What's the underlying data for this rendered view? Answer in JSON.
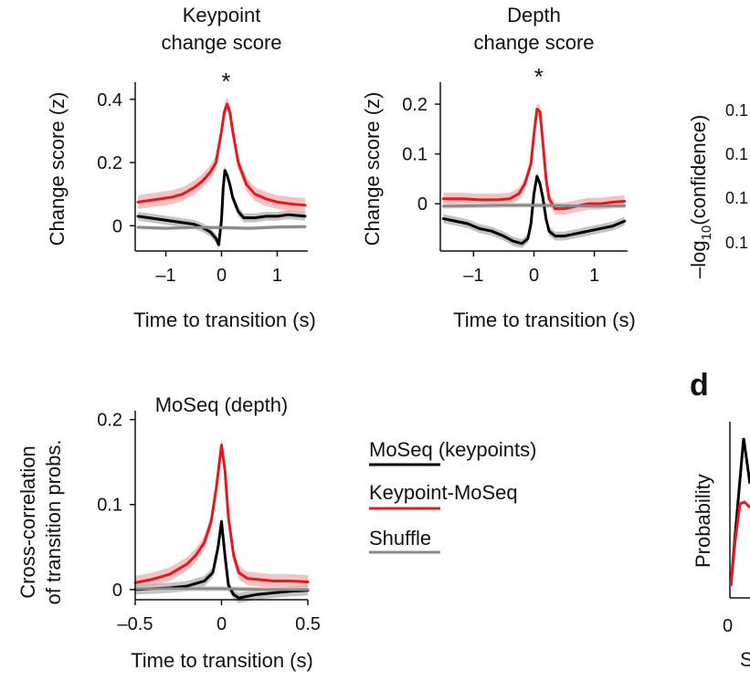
{
  "colors": {
    "moseq_keypoints": "#000000",
    "keypoint_moseq": "#e31a1c",
    "shuffle": "#8a8a8a",
    "band_red": "#f4b6b7",
    "band_black": "#b9b9b9",
    "band_grey": "#d2d2d2"
  },
  "panel_d_label": "d",
  "legend": [
    {
      "label": "MoSeq (keypoints)",
      "color_key": "moseq_keypoints"
    },
    {
      "label": "Keypoint-MoSeq",
      "color_key": "keypoint_moseq"
    },
    {
      "label": "Shuffle",
      "color_key": "shuffle"
    }
  ],
  "partial": {
    "right_ylabel_top": "–log",
    "right_ylabel_sub": "10",
    "right_ylabel_rest": "(confidence)",
    "right_ticks": [
      "0.1",
      "0.1",
      "0.1",
      "0.1"
    ],
    "d_ylabel": "Probability",
    "d_xtick": "0",
    "d_xlabel_fragment": "S"
  },
  "chart_data": [
    {
      "type": "line",
      "title_lines": [
        "Keypoint",
        "change score"
      ],
      "xlabel": "Time to transition (s)",
      "ylabel": "Change score (z)",
      "xlim": [
        -1.55,
        1.55
      ],
      "ylim": [
        -0.08,
        0.44
      ],
      "xticks": [
        -1,
        0,
        1
      ],
      "xtick_labels": [
        "–1",
        "0",
        "1"
      ],
      "yticks": [
        0,
        0.2,
        0.4
      ],
      "ytick_labels": [
        "0",
        "0.2",
        "0.4"
      ],
      "annotation": "*",
      "annotation_x": 0.08,
      "series": [
        {
          "name": "Keypoint-MoSeq",
          "color_key": "keypoint_moseq",
          "band_key": "band_red",
          "band": 0.022,
          "x": [
            -1.5,
            -1.3,
            -1.1,
            -0.9,
            -0.7,
            -0.5,
            -0.35,
            -0.2,
            -0.1,
            0,
            0.05,
            0.1,
            0.15,
            0.2,
            0.3,
            0.45,
            0.6,
            0.8,
            1.0,
            1.2,
            1.5
          ],
          "y": [
            0.075,
            0.08,
            0.085,
            0.09,
            0.1,
            0.12,
            0.14,
            0.17,
            0.2,
            0.3,
            0.36,
            0.385,
            0.36,
            0.3,
            0.2,
            0.13,
            0.1,
            0.085,
            0.075,
            0.07,
            0.065
          ]
        },
        {
          "name": "MoSeq (keypoints)",
          "color_key": "moseq_keypoints",
          "band_key": "band_black",
          "band": 0.014,
          "x": [
            -1.5,
            -1.3,
            -1.1,
            -0.9,
            -0.7,
            -0.5,
            -0.35,
            -0.2,
            -0.1,
            -0.05,
            0,
            0.03,
            0.06,
            0.1,
            0.15,
            0.2,
            0.3,
            0.4,
            0.6,
            0.8,
            1.0,
            1.2,
            1.5
          ],
          "y": [
            0.03,
            0.025,
            0.02,
            0.015,
            0.01,
            0.005,
            -0.005,
            -0.02,
            -0.04,
            -0.06,
            0.02,
            0.12,
            0.175,
            0.16,
            0.13,
            0.09,
            0.045,
            0.025,
            0.025,
            0.03,
            0.03,
            0.035,
            0.03
          ]
        },
        {
          "name": "Shuffle",
          "color_key": "shuffle",
          "band_key": "band_grey",
          "band": 0.006,
          "x": [
            -1.5,
            -1.0,
            -0.5,
            0,
            0.5,
            1.0,
            1.5
          ],
          "y": [
            -0.005,
            -0.008,
            -0.005,
            -0.006,
            -0.008,
            -0.004,
            -0.003
          ]
        }
      ]
    },
    {
      "type": "line",
      "title_lines": [
        "Depth",
        "change score"
      ],
      "xlabel": "Time to transition (s)",
      "ylabel": "Change score (z)",
      "xlim": [
        -1.55,
        1.55
      ],
      "ylim": [
        -0.095,
        0.235
      ],
      "xticks": [
        -1,
        0,
        1
      ],
      "xtick_labels": [
        "–1",
        "0",
        "1"
      ],
      "yticks": [
        0,
        0.1,
        0.2
      ],
      "ytick_labels": [
        "0",
        "0.1",
        "0.2"
      ],
      "annotation": "*",
      "annotation_x": 0.08,
      "series": [
        {
          "name": "Keypoint-MoSeq",
          "color_key": "keypoint_moseq",
          "band_key": "band_red",
          "band": 0.012,
          "x": [
            -1.5,
            -1.2,
            -0.9,
            -0.6,
            -0.4,
            -0.25,
            -0.15,
            -0.05,
            0,
            0.05,
            0.1,
            0.15,
            0.2,
            0.25,
            0.35,
            0.5,
            0.7,
            0.9,
            1.1,
            1.3,
            1.5
          ],
          "y": [
            0.01,
            0.01,
            0.008,
            0.008,
            0.01,
            0.02,
            0.04,
            0.08,
            0.14,
            0.19,
            0.185,
            0.12,
            0.05,
            0.01,
            -0.01,
            -0.01,
            -0.005,
            0,
            0,
            0.003,
            0.005
          ]
        },
        {
          "name": "MoSeq (keypoints)",
          "color_key": "moseq_keypoints",
          "band_key": "band_black",
          "band": 0.009,
          "x": [
            -1.5,
            -1.3,
            -1.1,
            -0.9,
            -0.7,
            -0.5,
            -0.35,
            -0.2,
            -0.1,
            -0.05,
            0,
            0.05,
            0.1,
            0.15,
            0.2,
            0.25,
            0.35,
            0.5,
            0.7,
            0.9,
            1.1,
            1.3,
            1.5
          ],
          "y": [
            -0.03,
            -0.035,
            -0.04,
            -0.05,
            -0.055,
            -0.065,
            -0.075,
            -0.08,
            -0.07,
            -0.04,
            0.02,
            0.055,
            0.04,
            0.01,
            -0.03,
            -0.055,
            -0.065,
            -0.065,
            -0.06,
            -0.055,
            -0.05,
            -0.045,
            -0.035
          ]
        },
        {
          "name": "Shuffle",
          "color_key": "shuffle",
          "band_key": "band_grey",
          "band": 0.005,
          "x": [
            -1.5,
            -1.0,
            -0.5,
            0,
            0.5,
            1.0,
            1.5
          ],
          "y": [
            -0.005,
            -0.004,
            -0.003,
            -0.003,
            -0.004,
            -0.005,
            -0.004
          ]
        }
      ]
    },
    {
      "type": "line",
      "title_lines": [
        "MoSeq (depth)"
      ],
      "xlabel": "Time to transition (s)",
      "ylabel_lines": [
        "Cross-correlation",
        "of transition probs."
      ],
      "xlim": [
        -0.5,
        0.5
      ],
      "ylim": [
        -0.012,
        0.205
      ],
      "xticks": [
        -0.5,
        0,
        0.5
      ],
      "xtick_labels": [
        "–0.5",
        "0",
        "0.5"
      ],
      "yticks": [
        0,
        0.1,
        0.2
      ],
      "ytick_labels": [
        "0",
        "0.1",
        "0.2"
      ],
      "series": [
        {
          "name": "Keypoint-MoSeq",
          "color_key": "keypoint_moseq",
          "band_key": "band_red",
          "band": 0.008,
          "x": [
            -0.5,
            -0.4,
            -0.3,
            -0.2,
            -0.15,
            -0.1,
            -0.06,
            -0.03,
            0,
            0.02,
            0.04,
            0.07,
            0.1,
            0.15,
            0.2,
            0.3,
            0.4,
            0.5
          ],
          "y": [
            0.008,
            0.012,
            0.018,
            0.03,
            0.04,
            0.055,
            0.08,
            0.12,
            0.17,
            0.14,
            0.085,
            0.04,
            0.02,
            0.013,
            0.012,
            0.01,
            0.01,
            0.009
          ]
        },
        {
          "name": "MoSeq (keypoints)",
          "color_key": "moseq_keypoints",
          "band_key": "band_black",
          "band": 0.006,
          "x": [
            -0.5,
            -0.4,
            -0.3,
            -0.2,
            -0.1,
            -0.05,
            -0.02,
            0,
            0.02,
            0.04,
            0.07,
            0.1,
            0.15,
            0.2,
            0.3,
            0.4,
            0.5
          ],
          "y": [
            0,
            0.001,
            0.002,
            0.004,
            0.01,
            0.02,
            0.05,
            0.08,
            0.04,
            0.005,
            -0.006,
            -0.01,
            -0.008,
            -0.006,
            -0.004,
            -0.002,
            -0.001
          ]
        },
        {
          "name": "Shuffle",
          "color_key": "shuffle",
          "band_key": "band_grey",
          "band": 0.003,
          "x": [
            -0.5,
            -0.25,
            0,
            0.25,
            0.5
          ],
          "y": [
            0.001,
            0.001,
            0.001,
            0.0,
            0.0
          ]
        }
      ]
    }
  ]
}
